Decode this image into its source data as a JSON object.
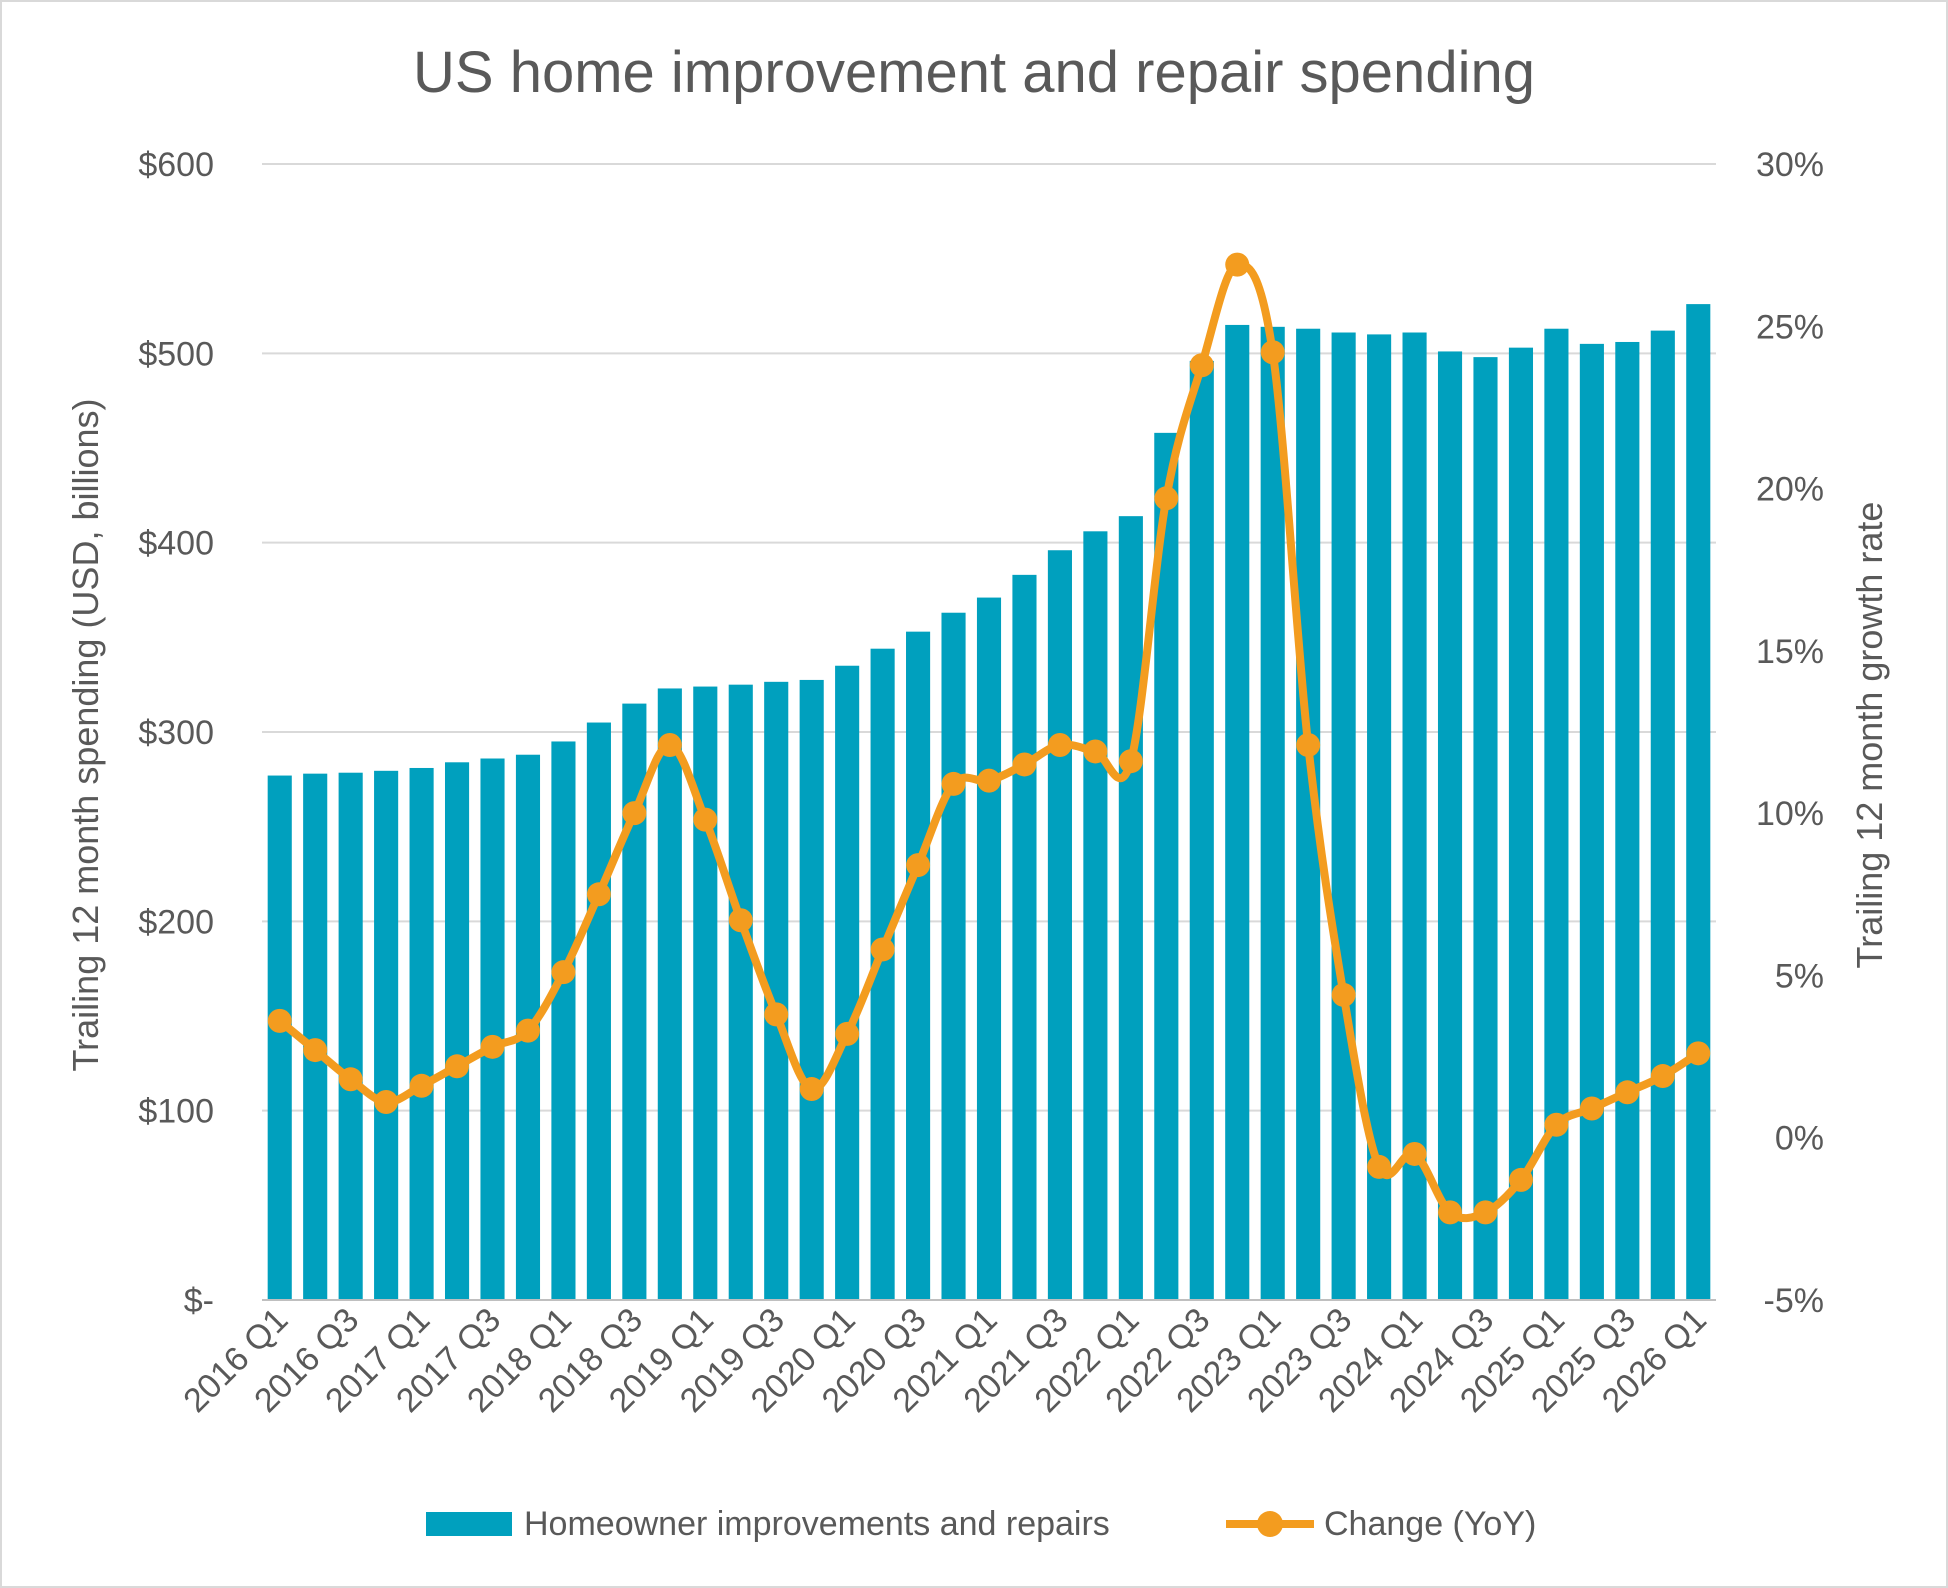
{
  "chart_data": {
    "type": "bar",
    "title": "US home improvement and repair spending",
    "ylabel": "Trailing 12 month spending (USD, billions)",
    "y2label": "Trailing 12 month growth rate",
    "ylim": [
      0,
      600
    ],
    "y2lim": [
      -5,
      30
    ],
    "y_ticks": [
      "$-",
      "$100",
      "$200",
      "$300",
      "$400",
      "$500",
      "$600"
    ],
    "y2_ticks": [
      "-5%",
      "0%",
      "5%",
      "10%",
      "15%",
      "20%",
      "25%",
      "30%"
    ],
    "grid": true,
    "legend_position": "bottom",
    "categories": [
      "2016 Q1",
      "2016 Q2",
      "2016 Q3",
      "2016 Q4",
      "2017 Q1",
      "2017 Q2",
      "2017 Q3",
      "2017 Q4",
      "2018 Q1",
      "2018 Q2",
      "2018 Q3",
      "2018 Q4",
      "2019 Q1",
      "2019 Q2",
      "2019 Q3",
      "2019 Q4",
      "2020 Q1",
      "2020 Q2",
      "2020 Q3",
      "2020 Q4",
      "2021 Q1",
      "2021 Q2",
      "2021 Q3",
      "2021 Q4",
      "2022 Q1",
      "2022 Q2",
      "2022 Q3",
      "2022 Q4",
      "2023 Q1",
      "2023 Q2",
      "2023 Q3",
      "2023 Q4",
      "2024 Q1",
      "2024 Q2",
      "2024 Q3",
      "2024 Q4",
      "2025 Q1",
      "2025 Q2",
      "2025 Q3",
      "2025 Q4",
      "2026 Q1"
    ],
    "tick_labels": [
      "2016 Q1",
      "",
      "2016 Q3",
      "",
      "2017 Q1",
      "",
      "2017 Q3",
      "",
      "2018 Q1",
      "",
      "2018 Q3",
      "",
      "2019 Q1",
      "",
      "2019 Q3",
      "",
      "2020 Q1",
      "",
      "2020 Q3",
      "",
      "2021 Q1",
      "",
      "2021 Q3",
      "",
      "2022 Q1",
      "",
      "2022 Q3",
      "",
      "2023 Q1",
      "",
      "2023 Q3",
      "",
      "2024 Q1",
      "",
      "2024 Q3",
      "",
      "2025 Q1",
      "",
      "2025 Q3",
      "",
      "2026 Q1"
    ],
    "series": [
      {
        "name": "Homeowner improvements and repairs",
        "type": "bar",
        "axis": "left",
        "color": "#00a0be",
        "values": [
          277,
          278,
          278.5,
          279.5,
          281,
          284,
          286,
          288,
          295,
          305,
          315,
          323,
          324,
          325,
          326.5,
          327.5,
          335,
          344,
          353,
          363,
          371,
          383,
          396,
          406,
          414,
          458,
          496,
          515,
          514,
          513,
          511,
          510,
          511,
          501,
          498,
          503,
          513,
          505,
          506,
          512,
          526
        ]
      },
      {
        "name": "Change (YoY)",
        "type": "line",
        "axis": "right",
        "color": "#f39c1f",
        "values": [
          3.6,
          2.7,
          1.8,
          1.1,
          1.6,
          2.2,
          2.8,
          3.3,
          5.1,
          7.5,
          10.0,
          12.1,
          9.8,
          6.7,
          3.8,
          1.5,
          3.2,
          5.8,
          8.4,
          10.9,
          11.0,
          11.5,
          12.1,
          11.9,
          11.6,
          19.7,
          23.8,
          26.9,
          24.2,
          12.1,
          4.4,
          -0.9,
          -0.5,
          -2.3,
          -2.3,
          -1.3,
          0.4,
          0.9,
          1.4,
          1.9,
          2.6
        ]
      }
    ]
  }
}
